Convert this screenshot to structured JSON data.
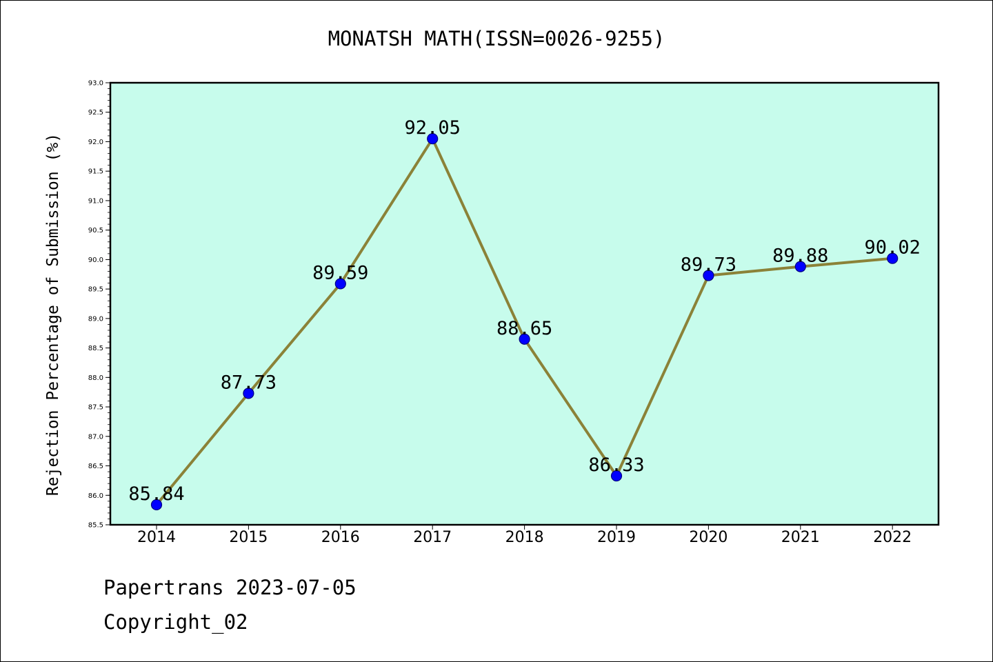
{
  "chart_data": {
    "type": "line",
    "title": "MONATSH MATH(ISSN=0026-9255)",
    "xlabel": "",
    "ylabel": "Rejection Percentage of Submission (%)",
    "categories": [
      "2014",
      "2015",
      "2016",
      "2017",
      "2018",
      "2019",
      "2020",
      "2021",
      "2022"
    ],
    "values": [
      85.84,
      87.73,
      89.59,
      92.05,
      88.65,
      86.33,
      89.73,
      89.88,
      90.02
    ],
    "data_labels": [
      "85.84",
      "87.73",
      "89.59",
      "92.05",
      "88.65",
      "86.33",
      "89.73",
      "89.88",
      "90.02"
    ],
    "ylim": [
      85.5,
      93.0
    ],
    "y_major_ticks": [
      "85.5",
      "86.0",
      "86.5",
      "87.0",
      "87.5",
      "88.0",
      "88.5",
      "89.0",
      "89.5",
      "90.0",
      "90.5",
      "91.0",
      "91.5",
      "92.0",
      "92.5",
      "93.0"
    ],
    "grid": false,
    "legend": "none",
    "colors": {
      "plot_background": "#c7fcec",
      "line": "#8b8238",
      "marker": "#0000ff",
      "marker_edge": "#000080"
    }
  },
  "footer": {
    "line1": "Papertrans 2023-07-05",
    "line2": "Copyright_02"
  }
}
